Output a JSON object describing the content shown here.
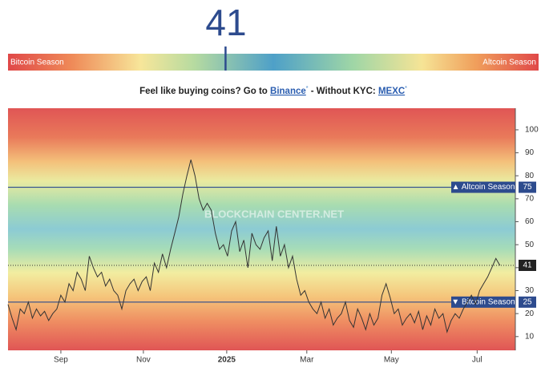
{
  "header": {
    "value": 41,
    "left_label": "Bitcoin Season",
    "right_label": "Altcoin Season"
  },
  "promo": {
    "text_before": "Feel like buying coins? Go to",
    "link1": "Binance",
    "asterisk": "*",
    "text_middle": "- Without KYC:",
    "link2": "MEXC"
  },
  "chart_data": {
    "type": "line",
    "watermark": "BLOCKCHAIN CENTER.NET",
    "color": "#333333",
    "values": [
      24,
      18,
      13,
      22,
      20,
      25,
      18,
      22,
      19,
      21,
      17,
      20,
      22,
      28,
      25,
      33,
      30,
      38,
      35,
      30,
      45,
      40,
      36,
      38,
      32,
      35,
      30,
      28,
      22,
      30,
      33,
      35,
      30,
      34,
      36,
      30,
      42,
      38,
      46,
      40,
      48,
      55,
      62,
      72,
      80,
      87,
      80,
      70,
      65,
      68,
      65,
      55,
      48,
      50,
      45,
      56,
      60,
      47,
      52,
      40,
      55,
      50,
      48,
      53,
      56,
      43,
      58,
      45,
      50,
      40,
      45,
      35,
      28,
      30,
      25,
      22,
      20,
      25,
      18,
      22,
      15,
      18,
      20,
      25,
      17,
      14,
      22,
      18,
      13,
      20,
      15,
      18,
      28,
      33,
      27,
      20,
      22,
      15,
      18,
      20,
      16,
      21,
      13,
      19,
      15,
      22,
      18,
      20,
      12,
      17,
      20,
      18,
      22,
      25,
      28,
      24,
      30,
      33,
      36,
      40,
      44,
      41
    ],
    "xlim": [
      0,
      124.8
    ],
    "xticks": [
      {
        "value": 13,
        "label": "Sep"
      },
      {
        "value": 33.3,
        "label": "Nov"
      },
      {
        "value": 53.8,
        "label": "2025"
      },
      {
        "value": 73.5,
        "label": "Mar"
      },
      {
        "value": 94.3,
        "label": "May"
      },
      {
        "value": 115.4,
        "label": "Jul"
      }
    ],
    "ylim": [
      4,
      109.4
    ],
    "yticks": [
      10,
      20,
      30,
      40,
      50,
      60,
      70,
      80,
      90,
      100
    ],
    "reference_lines": [
      {
        "value": 75,
        "label": "▲ Altcoin Season"
      },
      {
        "value": 25,
        "label": "▼ Bitcoin Season"
      }
    ],
    "current": 41
  }
}
